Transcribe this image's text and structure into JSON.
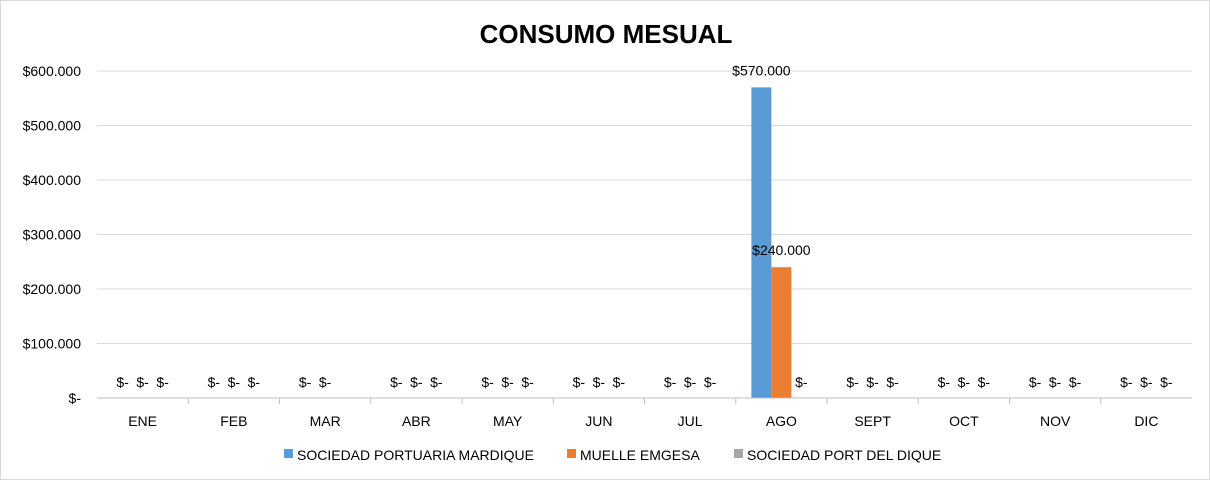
{
  "chart_data": {
    "type": "bar",
    "title": "CONSUMO MESUAL",
    "categories": [
      "ENE",
      "FEB",
      "MAR",
      "ABR",
      "MAY",
      "JUN",
      "JUL",
      "AGO",
      "SEPT",
      "OCT",
      "NOV",
      "DIC"
    ],
    "series": [
      {
        "name": "SOCIEDAD PORTUARIA MARDIQUE",
        "color": "#5b9bd5",
        "values": [
          0,
          0,
          0,
          0,
          0,
          0,
          0,
          570000,
          0,
          0,
          0,
          0
        ],
        "labels": [
          "$-",
          "$-",
          "$-",
          "$-",
          "$-",
          "$-",
          "$-",
          "$570.000",
          "$-",
          "$-",
          "$-",
          "$-"
        ]
      },
      {
        "name": "MUELLE EMGESA",
        "color": "#ed7d31",
        "values": [
          0,
          0,
          0,
          0,
          0,
          0,
          0,
          240000,
          0,
          0,
          0,
          0
        ],
        "labels": [
          "$-",
          "$-",
          "$-",
          "$-",
          "$-",
          "$-",
          "$-",
          "$240.000",
          "$-",
          "$-",
          "$-",
          "$-"
        ]
      },
      {
        "name": "SOCIEDAD PORT DEL DIQUE",
        "color": "#a5a5a5",
        "values": [
          0,
          0,
          0,
          0,
          0,
          0,
          0,
          0,
          0,
          0,
          0,
          0
        ],
        "labels": [
          "$-",
          "$-",
          "",
          "$-",
          "$-",
          "$-",
          "$-",
          "$-",
          "$-",
          "$-",
          "$-",
          "$-"
        ]
      }
    ],
    "ylim": [
      0,
      600000
    ],
    "yticks": [
      0,
      100000,
      200000,
      300000,
      400000,
      500000,
      600000
    ],
    "ytick_labels": [
      "$-",
      "$100.000",
      "$200.000",
      "$300.000",
      "$400.000",
      "$500.000",
      "$600.000"
    ],
    "xlabel": "",
    "ylabel": "",
    "grid": true,
    "legend": "bottom"
  }
}
